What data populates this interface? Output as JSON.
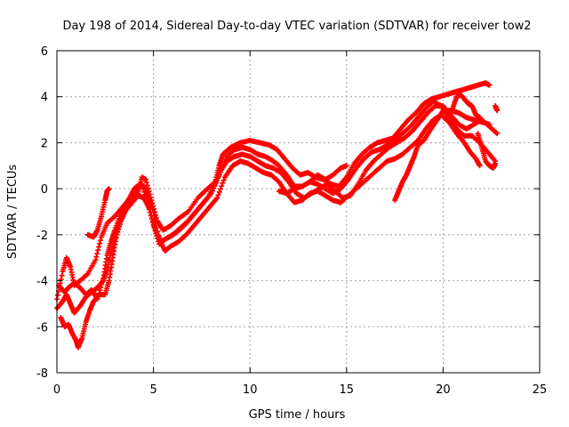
{
  "chart_data": {
    "type": "scatter",
    "title": "Day 198 of 2014, Sidereal Day-to-day VTEC variation (SDTVAR) for receiver tow2",
    "xlabel": "GPS time / hours",
    "ylabel": "SDTVAR / TECUs",
    "xlim": [
      0,
      25
    ],
    "ylim": [
      -8,
      6
    ],
    "xticks": [
      0,
      5,
      10,
      15,
      20,
      25
    ],
    "yticks": [
      -8,
      -6,
      -4,
      -2,
      0,
      2,
      4,
      6
    ],
    "xtick_labels": [
      "0",
      "5",
      "10",
      "15",
      "20",
      "25"
    ],
    "ytick_labels": [
      "-8",
      "-6",
      "-4",
      "-2",
      "0",
      "2",
      "4",
      "6"
    ],
    "grid": true,
    "marker": "+",
    "color": "#ff0000",
    "series": [
      {
        "name": "track-1",
        "points": [
          [
            0.0,
            -4.8
          ],
          [
            0.3,
            -3.6
          ],
          [
            0.5,
            -3.0
          ],
          [
            0.7,
            -3.4
          ],
          [
            0.9,
            -4.2
          ],
          [
            1.2,
            -4.0
          ],
          [
            1.6,
            -3.7
          ],
          [
            2.0,
            -3.1
          ],
          [
            2.3,
            -2.1
          ],
          [
            2.6,
            -1.5
          ],
          [
            3.0,
            -1.2
          ],
          [
            3.4,
            -0.8
          ],
          [
            3.8,
            -0.4
          ],
          [
            4.2,
            -0.2
          ],
          [
            4.4,
            0.5
          ],
          [
            4.6,
            0.4
          ],
          [
            4.9,
            -0.5
          ],
          [
            5.2,
            -1.4
          ],
          [
            5.5,
            -1.8
          ],
          [
            5.9,
            -1.6
          ],
          [
            6.3,
            -1.3
          ],
          [
            6.8,
            -1.0
          ],
          [
            7.3,
            -0.4
          ],
          [
            7.8,
            0.0
          ],
          [
            8.2,
            0.3
          ],
          [
            8.4,
            1.0
          ],
          [
            8.6,
            1.5
          ],
          [
            9.0,
            1.8
          ],
          [
            9.5,
            2.0
          ],
          [
            10.0,
            2.1
          ],
          [
            10.5,
            2.0
          ],
          [
            11.0,
            1.9
          ],
          [
            11.4,
            1.7
          ],
          [
            11.8,
            1.3
          ],
          [
            12.2,
            0.9
          ],
          [
            12.6,
            0.6
          ],
          [
            13.0,
            0.7
          ],
          [
            13.4,
            0.5
          ],
          [
            13.8,
            0.4
          ],
          [
            14.2,
            0.2
          ],
          [
            14.6,
            0.1
          ],
          [
            15.0,
            0.5
          ],
          [
            15.4,
            1.1
          ],
          [
            15.8,
            1.5
          ],
          [
            16.2,
            1.8
          ],
          [
            16.6,
            2.0
          ],
          [
            17.0,
            2.1
          ],
          [
            17.4,
            2.2
          ],
          [
            17.8,
            2.6
          ],
          [
            18.2,
            3.0
          ],
          [
            18.6,
            3.3
          ],
          [
            19.0,
            3.7
          ],
          [
            19.4,
            3.9
          ],
          [
            19.8,
            4.0
          ],
          [
            20.2,
            4.1
          ],
          [
            20.6,
            4.2
          ],
          [
            21.0,
            4.3
          ],
          [
            21.4,
            4.4
          ],
          [
            21.8,
            4.5
          ],
          [
            22.2,
            4.6
          ],
          [
            22.4,
            4.5
          ]
        ]
      },
      {
        "name": "track-2",
        "points": [
          [
            0.0,
            -5.2
          ],
          [
            0.3,
            -4.9
          ],
          [
            0.5,
            -4.6
          ],
          [
            0.7,
            -5.0
          ],
          [
            0.9,
            -5.4
          ],
          [
            1.2,
            -5.1
          ],
          [
            1.5,
            -4.7
          ],
          [
            1.8,
            -4.5
          ],
          [
            2.1,
            -4.3
          ],
          [
            2.4,
            -4.0
          ],
          [
            2.6,
            -3.5
          ],
          [
            2.8,
            -2.8
          ],
          [
            3.0,
            -2.2
          ],
          [
            3.3,
            -1.4
          ],
          [
            3.6,
            -0.9
          ],
          [
            3.9,
            -0.6
          ],
          [
            4.2,
            -0.3
          ],
          [
            4.5,
            -0.4
          ],
          [
            4.8,
            -0.9
          ],
          [
            5.1,
            -1.8
          ],
          [
            5.4,
            -2.3
          ],
          [
            5.8,
            -2.1
          ],
          [
            6.2,
            -1.9
          ],
          [
            6.6,
            -1.6
          ],
          [
            7.0,
            -1.2
          ],
          [
            7.4,
            -0.8
          ],
          [
            7.8,
            -0.4
          ],
          [
            8.2,
            0.2
          ],
          [
            8.5,
            0.8
          ],
          [
            8.8,
            1.2
          ],
          [
            9.2,
            1.4
          ],
          [
            9.6,
            1.5
          ],
          [
            10.0,
            1.4
          ],
          [
            10.4,
            1.2
          ],
          [
            10.8,
            1.0
          ],
          [
            11.2,
            0.9
          ],
          [
            11.6,
            0.7
          ],
          [
            12.0,
            0.3
          ],
          [
            12.4,
            -0.2
          ],
          [
            12.8,
            -0.4
          ],
          [
            13.2,
            -0.2
          ],
          [
            13.6,
            0.0
          ],
          [
            14.0,
            0.2
          ],
          [
            14.4,
            -0.1
          ],
          [
            14.8,
            -0.4
          ],
          [
            15.2,
            -0.3
          ],
          [
            15.6,
            0.2
          ],
          [
            16.0,
            0.8
          ],
          [
            16.4,
            1.2
          ],
          [
            16.8,
            1.5
          ],
          [
            17.2,
            1.8
          ],
          [
            17.6,
            2.0
          ],
          [
            18.0,
            2.2
          ],
          [
            18.4,
            2.5
          ],
          [
            18.8,
            2.9
          ],
          [
            19.2,
            3.3
          ],
          [
            19.6,
            3.6
          ],
          [
            20.0,
            3.6
          ],
          [
            20.4,
            3.2
          ],
          [
            20.8,
            2.8
          ],
          [
            21.2,
            2.6
          ],
          [
            21.6,
            2.8
          ],
          [
            22.0,
            3.0
          ],
          [
            22.4,
            2.7
          ],
          [
            22.8,
            2.4
          ]
        ]
      },
      {
        "name": "track-3",
        "points": [
          [
            0.2,
            -5.6
          ],
          [
            0.4,
            -6.0
          ],
          [
            0.6,
            -5.9
          ],
          [
            0.8,
            -6.3
          ],
          [
            1.0,
            -6.6
          ],
          [
            1.1,
            -6.9
          ],
          [
            1.3,
            -6.5
          ],
          [
            1.5,
            -5.8
          ],
          [
            1.7,
            -5.3
          ],
          [
            1.9,
            -4.9
          ],
          [
            2.2,
            -4.6
          ],
          [
            2.5,
            -4.6
          ],
          [
            2.7,
            -4.0
          ],
          [
            2.9,
            -3.0
          ],
          [
            3.1,
            -2.0
          ],
          [
            3.4,
            -1.2
          ],
          [
            3.7,
            -0.5
          ],
          [
            4.0,
            0.0
          ],
          [
            4.3,
            0.2
          ],
          [
            4.5,
            0.1
          ],
          [
            4.7,
            -0.2
          ],
          [
            5.0,
            -1.0
          ],
          [
            5.3,
            -2.2
          ],
          [
            5.6,
            -2.7
          ],
          [
            5.9,
            -2.5
          ],
          [
            6.3,
            -2.3
          ],
          [
            6.7,
            -2.0
          ],
          [
            7.1,
            -1.6
          ],
          [
            7.5,
            -1.2
          ],
          [
            7.9,
            -0.8
          ],
          [
            8.3,
            -0.4
          ],
          [
            8.7,
            0.5
          ],
          [
            9.1,
            1.0
          ],
          [
            9.5,
            1.2
          ],
          [
            9.9,
            1.1
          ],
          [
            10.3,
            0.9
          ],
          [
            10.7,
            0.7
          ],
          [
            11.1,
            0.6
          ],
          [
            11.5,
            0.3
          ],
          [
            11.9,
            -0.2
          ],
          [
            12.3,
            -0.6
          ],
          [
            12.7,
            -0.5
          ],
          [
            13.1,
            -0.2
          ],
          [
            13.5,
            -0.1
          ],
          [
            13.9,
            -0.3
          ],
          [
            14.3,
            -0.5
          ],
          [
            14.7,
            -0.6
          ],
          [
            15.1,
            -0.3
          ],
          [
            15.5,
            0.0
          ],
          [
            15.9,
            0.3
          ],
          [
            16.3,
            0.6
          ],
          [
            16.7,
            0.9
          ],
          [
            17.1,
            1.2
          ],
          [
            17.5,
            1.3
          ],
          [
            17.9,
            1.5
          ],
          [
            18.3,
            1.8
          ],
          [
            18.7,
            2.1
          ],
          [
            19.1,
            2.6
          ],
          [
            19.5,
            3.0
          ],
          [
            19.9,
            3.2
          ],
          [
            20.3,
            2.9
          ],
          [
            20.7,
            2.4
          ],
          [
            21.1,
            2.0
          ],
          [
            21.4,
            1.6
          ],
          [
            21.7,
            1.3
          ],
          [
            21.9,
            1.0
          ]
        ]
      },
      {
        "name": "track-4",
        "points": [
          [
            0.1,
            -4.2
          ],
          [
            0.4,
            -4.5
          ],
          [
            0.6,
            -4.3
          ],
          [
            0.9,
            -4.1
          ],
          [
            1.2,
            -4.3
          ],
          [
            1.5,
            -4.6
          ],
          [
            1.8,
            -4.4
          ],
          [
            2.1,
            -4.8
          ],
          [
            2.4,
            -3.9
          ],
          [
            2.6,
            -2.9
          ],
          [
            2.8,
            -2.3
          ],
          [
            3.0,
            -1.8
          ],
          [
            3.3,
            -1.1
          ],
          [
            3.6,
            -0.6
          ],
          [
            3.9,
            -0.3
          ],
          [
            4.2,
            0.1
          ],
          [
            4.4,
            0.2
          ],
          [
            4.7,
            -0.6
          ],
          [
            5.0,
            -1.6
          ],
          [
            5.3,
            -2.4
          ],
          [
            5.6,
            -2.2
          ],
          [
            6.0,
            -2.0
          ],
          [
            6.4,
            -1.7
          ],
          [
            6.8,
            -1.4
          ],
          [
            7.2,
            -1.0
          ],
          [
            7.6,
            -0.6
          ],
          [
            8.0,
            -0.2
          ],
          [
            8.4,
            0.6
          ],
          [
            8.8,
            1.4
          ],
          [
            9.2,
            1.7
          ],
          [
            9.6,
            1.8
          ],
          [
            10.0,
            1.7
          ],
          [
            10.4,
            1.5
          ],
          [
            10.8,
            1.4
          ],
          [
            11.2,
            1.2
          ],
          [
            11.5,
            1.0
          ],
          [
            11.9,
            0.6
          ],
          [
            12.3,
            0.1
          ],
          [
            12.7,
            0.1
          ],
          [
            13.1,
            0.3
          ],
          [
            13.5,
            0.2
          ],
          [
            13.9,
            0.0
          ],
          [
            14.3,
            -0.2
          ],
          [
            14.7,
            0.0
          ],
          [
            15.1,
            0.4
          ],
          [
            15.5,
            0.9
          ],
          [
            15.9,
            1.3
          ],
          [
            16.3,
            1.6
          ],
          [
            16.7,
            1.7
          ],
          [
            17.1,
            1.9
          ],
          [
            17.5,
            2.1
          ],
          [
            17.9,
            2.4
          ],
          [
            18.3,
            2.7
          ],
          [
            18.7,
            3.1
          ],
          [
            19.1,
            3.5
          ],
          [
            19.5,
            3.8
          ],
          [
            19.9,
            3.6
          ],
          [
            20.3,
            3.1
          ],
          [
            20.7,
            2.6
          ],
          [
            21.1,
            2.3
          ],
          [
            21.5,
            2.3
          ],
          [
            21.9,
            2.0
          ],
          [
            22.3,
            1.6
          ],
          [
            22.7,
            1.2
          ]
        ]
      },
      {
        "name": "segment-a",
        "points": [
          [
            1.6,
            -2.0
          ],
          [
            1.9,
            -2.1
          ],
          [
            2.1,
            -1.8
          ],
          [
            2.3,
            -1.2
          ],
          [
            2.5,
            -0.5
          ],
          [
            2.6,
            -0.1
          ],
          [
            2.7,
            0.0
          ]
        ]
      },
      {
        "name": "segment-b",
        "points": [
          [
            11.5,
            -0.1
          ],
          [
            11.9,
            -0.2
          ],
          [
            12.3,
            0.0
          ],
          [
            12.7,
            0.1
          ],
          [
            13.1,
            0.3
          ],
          [
            13.5,
            0.6
          ],
          [
            13.9,
            0.4
          ],
          [
            14.3,
            0.6
          ],
          [
            14.7,
            0.9
          ],
          [
            15.0,
            1.0
          ]
        ]
      },
      {
        "name": "segment-c",
        "points": [
          [
            17.5,
            -0.5
          ],
          [
            17.7,
            -0.1
          ],
          [
            17.9,
            0.3
          ],
          [
            18.1,
            0.6
          ],
          [
            18.3,
            1.0
          ],
          [
            18.5,
            1.4
          ],
          [
            18.7,
            1.9
          ],
          [
            19.0,
            2.1
          ],
          [
            19.3,
            2.5
          ],
          [
            19.7,
            3.0
          ],
          [
            20.0,
            3.4
          ],
          [
            20.4,
            3.4
          ],
          [
            20.8,
            3.3
          ],
          [
            21.2,
            3.1
          ],
          [
            21.6,
            3.0
          ],
          [
            22.0,
            2.9
          ],
          [
            22.4,
            2.8
          ]
        ]
      },
      {
        "name": "segment-d",
        "points": [
          [
            21.8,
            2.4
          ],
          [
            22.0,
            1.8
          ],
          [
            22.2,
            1.2
          ],
          [
            22.4,
            1.0
          ],
          [
            22.6,
            0.9
          ],
          [
            22.7,
            1.1
          ]
        ]
      },
      {
        "name": "segment-e",
        "points": [
          [
            20.5,
            3.5
          ],
          [
            20.7,
            4.0
          ],
          [
            20.9,
            4.1
          ],
          [
            21.1,
            3.9
          ],
          [
            21.3,
            3.7
          ],
          [
            21.5,
            3.6
          ],
          [
            21.7,
            3.2
          ],
          [
            21.9,
            3.1
          ]
        ]
      },
      {
        "name": "segment-f",
        "points": [
          [
            22.7,
            3.6
          ],
          [
            22.8,
            3.4
          ]
        ]
      }
    ]
  }
}
